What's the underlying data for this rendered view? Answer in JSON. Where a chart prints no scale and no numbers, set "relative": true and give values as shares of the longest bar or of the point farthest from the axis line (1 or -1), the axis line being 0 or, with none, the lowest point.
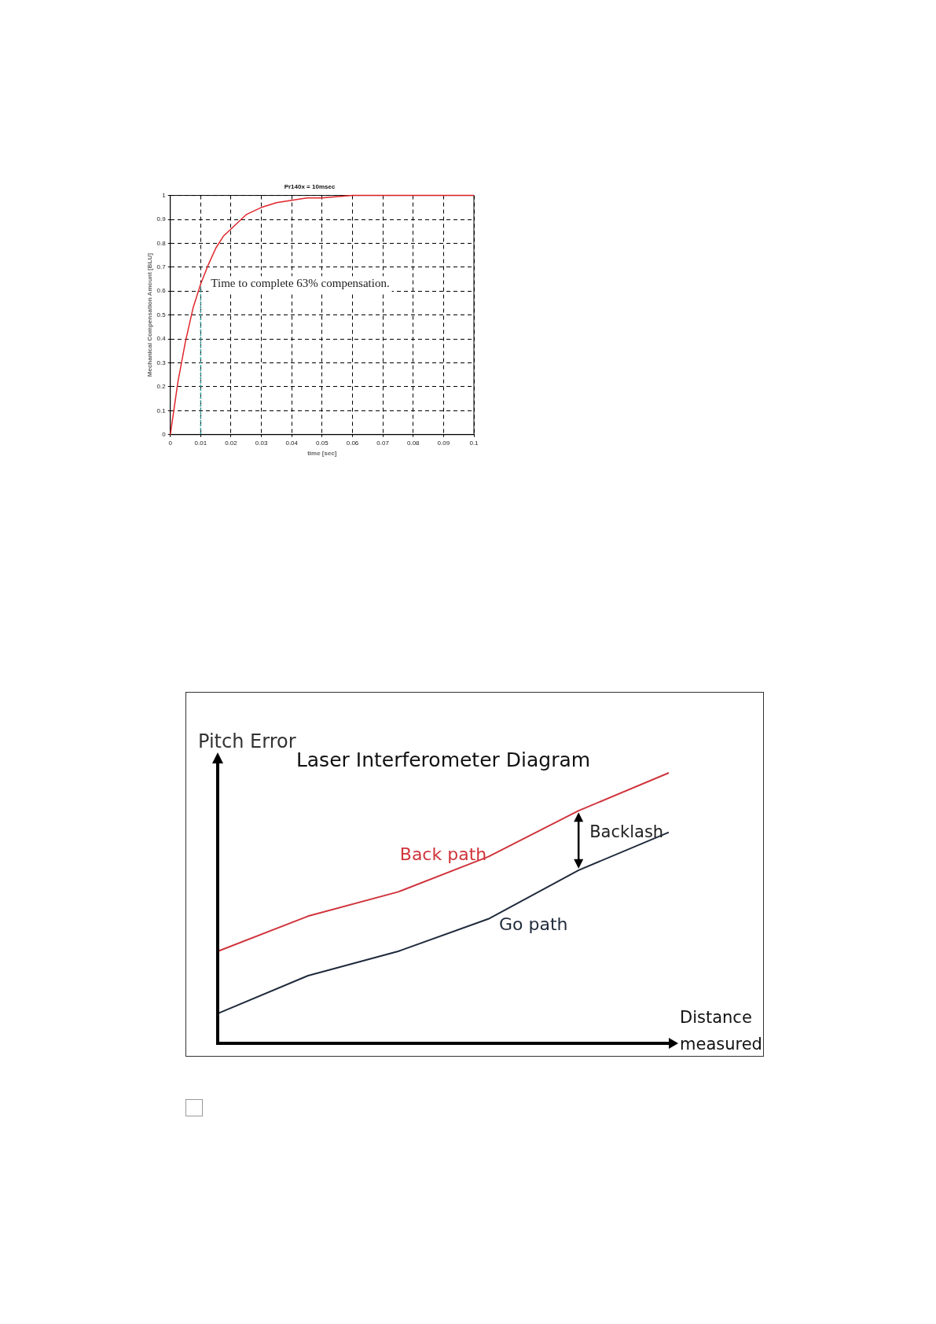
{
  "chart_data": [
    {
      "type": "line",
      "title": "Pr140x = 10msec",
      "xlabel": "time [sec]",
      "ylabel": "Mechanical Compensation Amount [BLU]",
      "x": [
        0,
        0.0025,
        0.005,
        0.0075,
        0.01,
        0.0125,
        0.015,
        0.0175,
        0.02,
        0.025,
        0.03,
        0.035,
        0.04,
        0.045,
        0.05,
        0.06,
        0.08,
        0.1
      ],
      "series": [
        {
          "color": "#e0262b",
          "values": [
            0,
            0.22,
            0.39,
            0.53,
            0.63,
            0.71,
            0.78,
            0.83,
            0.86,
            0.92,
            0.95,
            0.97,
            0.98,
            0.99,
            0.99,
            1,
            1,
            1
          ]
        },
        {
          "color": "#2a9d9a",
          "x": [
            0.01,
            0.01
          ],
          "values": [
            0,
            0.63
          ],
          "line_style": "dashed"
        }
      ],
      "xlim": [
        0,
        0.1
      ],
      "xticks": [
        0,
        0.01,
        0.02,
        0.03,
        0.04,
        0.05,
        0.06,
        0.07,
        0.08,
        0.09,
        0.1
      ],
      "ylim": [
        0,
        1
      ],
      "yticks": [
        0,
        0.1,
        0.2,
        0.3,
        0.4,
        0.5,
        0.6,
        0.7,
        0.8,
        0.9,
        1
      ],
      "grid": true,
      "annotations": [
        {
          "text": "Time to complete 63% compensation.",
          "x": 0.01,
          "y": 0.63
        }
      ]
    },
    {
      "type": "line",
      "title": "Laser Interferometer Diagram",
      "xlabel": "Distance measured",
      "ylabel": "Pitch Error",
      "relative": true,
      "categories": [
        null,
        null,
        null,
        null,
        null,
        null
      ],
      "series": [
        {
          "name": "Back path",
          "color": "#d0343c",
          "values": [
            0.34,
            0.47,
            0.56,
            0.69,
            0.86,
            1
          ]
        },
        {
          "name": "Go path",
          "color": "#1f2a3c",
          "values": [
            0.11,
            0.25,
            0.34,
            0.46,
            0.64,
            0.78
          ]
        }
      ],
      "annotations": [
        "Backlash"
      ]
    }
  ]
}
